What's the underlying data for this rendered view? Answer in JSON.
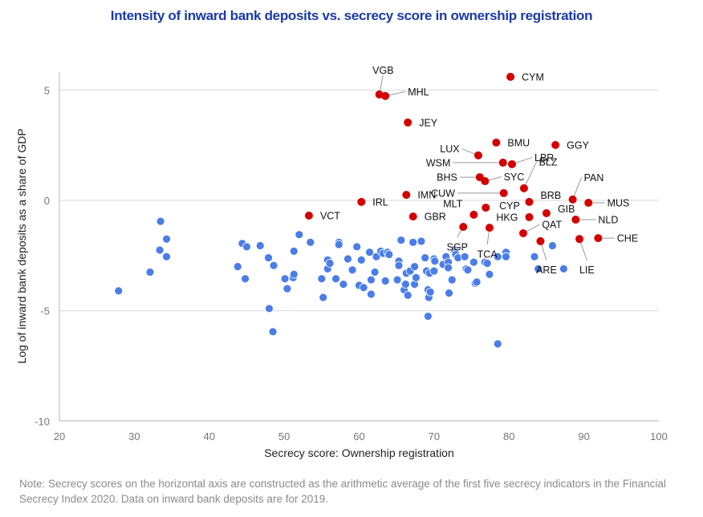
{
  "chart_data": {
    "type": "scatter",
    "title": "Intensity of inward bank deposits vs. secrecy score in ownership registration",
    "xlabel": "Secrecy score: Ownership registration",
    "ylabel": "Log of inward bank deposits as a share of GDP",
    "xlim": [
      20,
      100
    ],
    "ylim": [
      -10,
      6
    ],
    "xticks": [
      20,
      30,
      40,
      50,
      60,
      70,
      80,
      90,
      100
    ],
    "yticks": [
      5,
      0,
      -5,
      -10
    ],
    "grid": "horizontal",
    "colors": {
      "labeled": "#d40000",
      "other": "#4a7de8",
      "title": "#1a3aa8",
      "grid": "#d9d9d9",
      "leader": "#999999"
    },
    "series": [
      {
        "name": "labeled",
        "points": [
          {
            "label": "VGB",
            "x": 62.7,
            "y": 4.8,
            "lx": 0.5,
            "ly": 1.1
          },
          {
            "label": "MHL",
            "x": 63.5,
            "y": 4.73,
            "lx": 3.0,
            "ly": 0.2
          },
          {
            "label": "CYM",
            "x": 80.2,
            "y": 5.6,
            "lx": 1.5,
            "ly": 0
          },
          {
            "label": "JEY",
            "x": 66.5,
            "y": 3.53,
            "lx": 1.5,
            "ly": 0
          },
          {
            "label": "BMU",
            "x": 78.3,
            "y": 2.62,
            "lx": 1.5,
            "ly": 0
          },
          {
            "label": "GGY",
            "x": 86.2,
            "y": 2.51,
            "lx": 1.5,
            "ly": 0
          },
          {
            "label": "LUX",
            "x": 75.9,
            "y": 2.04,
            "lx": -2.5,
            "ly": 0.3
          },
          {
            "label": "WSM",
            "x": 79.2,
            "y": 1.71,
            "lx": -7.0,
            "ly": 0.0
          },
          {
            "label": "LBR",
            "x": 80.4,
            "y": 1.64,
            "lx": 3.0,
            "ly": 0.3
          },
          {
            "label": "BHS",
            "x": 76.1,
            "y": 1.05,
            "lx": -3.0,
            "ly": 0.0
          },
          {
            "label": "SYC",
            "x": 76.8,
            "y": 0.87,
            "lx": 2.5,
            "ly": 0.2
          },
          {
            "label": "BLZ",
            "x": 82.0,
            "y": 0.55,
            "lx": 2.0,
            "ly": 1.2
          },
          {
            "label": "CUW",
            "x": 79.3,
            "y": 0.33,
            "lx": -6.5,
            "ly": 0.0
          },
          {
            "label": "IMN",
            "x": 66.3,
            "y": 0.25,
            "lx": 1.5,
            "ly": 0
          },
          {
            "label": "IRL",
            "x": 60.3,
            "y": -0.07,
            "lx": 1.5,
            "ly": 0
          },
          {
            "label": "PAN",
            "x": 88.5,
            "y": 0.04,
            "lx": 1.5,
            "ly": 1.0
          },
          {
            "label": "MUS",
            "x": 90.6,
            "y": -0.11,
            "lx": 2.5,
            "ly": 0.0
          },
          {
            "label": "BRB",
            "x": 82.7,
            "y": -0.07,
            "lx": 1.5,
            "ly": 0.3
          },
          {
            "label": "CYP",
            "x": 76.9,
            "y": -0.33,
            "lx": 1.8,
            "ly": 0.1
          },
          {
            "label": "MLT",
            "x": 75.3,
            "y": -0.65,
            "lx": -1.5,
            "ly": 0.5
          },
          {
            "label": "GIB",
            "x": 85.0,
            "y": -0.58,
            "lx": 1.5,
            "ly": 0.2
          },
          {
            "label": "VCT",
            "x": 53.3,
            "y": -0.69,
            "lx": 1.5,
            "ly": 0
          },
          {
            "label": "GBR",
            "x": 67.2,
            "y": -0.73,
            "lx": 1.5,
            "ly": 0
          },
          {
            "label": "HKG",
            "x": 82.7,
            "y": -0.76,
            "lx": -1.5,
            "ly": 0
          },
          {
            "label": "NLD",
            "x": 88.9,
            "y": -0.87,
            "lx": 3.0,
            "ly": 0.0
          },
          {
            "label": "SGP",
            "x": 73.9,
            "y": -1.2,
            "lx": -0.8,
            "ly": -0.9
          },
          {
            "label": "TCA",
            "x": 77.4,
            "y": -1.24,
            "lx": -0.3,
            "ly": -1.2
          },
          {
            "label": "QAT",
            "x": 81.9,
            "y": -1.49,
            "lx": 2.5,
            "ly": 0.4
          },
          {
            "label": "ARE",
            "x": 84.2,
            "y": -1.85,
            "lx": 0.8,
            "ly": -1.3
          },
          {
            "label": "LIE",
            "x": 89.4,
            "y": -1.75,
            "lx": 1.0,
            "ly": -1.4
          },
          {
            "label": "CHE",
            "x": 91.9,
            "y": -1.71,
            "lx": 2.5,
            "ly": 0.0
          }
        ]
      },
      {
        "name": "other",
        "points": [
          [
            27.9,
            -4.1
          ],
          [
            32.1,
            -3.25
          ],
          [
            33.5,
            -0.95
          ],
          [
            33.4,
            -2.25
          ],
          [
            34.3,
            -1.75
          ],
          [
            34.3,
            -2.55
          ],
          [
            43.8,
            -3.0
          ],
          [
            44.4,
            -1.95
          ],
          [
            45.0,
            -2.1
          ],
          [
            44.8,
            -3.55
          ],
          [
            46.8,
            -2.05
          ],
          [
            47.9,
            -2.6
          ],
          [
            48.6,
            -2.95
          ],
          [
            48.0,
            -4.9
          ],
          [
            48.5,
            -5.95
          ],
          [
            50.1,
            -3.55
          ],
          [
            50.4,
            -4.0
          ],
          [
            51.2,
            -3.5
          ],
          [
            51.3,
            -3.35
          ],
          [
            51.3,
            -2.3
          ],
          [
            52.0,
            -1.55
          ],
          [
            53.5,
            -1.9
          ],
          [
            55.0,
            -3.55
          ],
          [
            55.2,
            -4.4
          ],
          [
            55.8,
            -2.7
          ],
          [
            55.8,
            -3.1
          ],
          [
            56.1,
            -2.85
          ],
          [
            56.9,
            -3.55
          ],
          [
            57.3,
            -1.9
          ],
          [
            57.3,
            -2.0
          ],
          [
            57.9,
            -3.8
          ],
          [
            58.5,
            -2.65
          ],
          [
            59.1,
            -3.15
          ],
          [
            59.7,
            -2.1
          ],
          [
            60.0,
            -3.85
          ],
          [
            60.3,
            -2.7
          ],
          [
            60.6,
            -3.95
          ],
          [
            61.4,
            -2.35
          ],
          [
            61.6,
            -4.25
          ],
          [
            61.6,
            -3.6
          ],
          [
            62.1,
            -3.25
          ],
          [
            62.3,
            -2.55
          ],
          [
            62.9,
            -2.3
          ],
          [
            63.2,
            -2.4
          ],
          [
            63.5,
            -3.65
          ],
          [
            63.8,
            -2.35
          ],
          [
            64.0,
            -2.45
          ],
          [
            65.1,
            -3.6
          ],
          [
            65.3,
            -2.75
          ],
          [
            65.3,
            -2.95
          ],
          [
            65.6,
            -1.8
          ],
          [
            66.0,
            -4.05
          ],
          [
            66.3,
            -3.3
          ],
          [
            66.2,
            -3.8
          ],
          [
            66.5,
            -4.3
          ],
          [
            66.8,
            -3.2
          ],
          [
            67.2,
            -1.9
          ],
          [
            67.4,
            -3.0
          ],
          [
            67.4,
            -3.8
          ],
          [
            67.6,
            -3.5
          ],
          [
            68.3,
            -1.85
          ],
          [
            68.8,
            -2.6
          ],
          [
            69.0,
            -3.2
          ],
          [
            69.2,
            -4.05
          ],
          [
            69.4,
            -3.3
          ],
          [
            69.3,
            -4.4
          ],
          [
            69.5,
            -4.15
          ],
          [
            69.2,
            -5.25
          ],
          [
            70.0,
            -2.65
          ],
          [
            70.1,
            -2.75
          ],
          [
            70.0,
            -3.2
          ],
          [
            71.2,
            -2.9
          ],
          [
            71.6,
            -2.55
          ],
          [
            71.9,
            -2.8
          ],
          [
            71.9,
            -3.05
          ],
          [
            72.0,
            -4.2
          ],
          [
            72.4,
            -3.6
          ],
          [
            72.8,
            -2.25
          ],
          [
            72.8,
            -2.35
          ],
          [
            72.9,
            -2.45
          ],
          [
            73.2,
            -2.6
          ],
          [
            74.1,
            -2.55
          ],
          [
            74.3,
            -3.1
          ],
          [
            74.5,
            -3.15
          ],
          [
            75.3,
            -2.8
          ],
          [
            75.5,
            -3.75
          ],
          [
            75.7,
            -3.7
          ],
          [
            76.8,
            -2.8
          ],
          [
            77.1,
            -2.85
          ],
          [
            77.4,
            -3.35
          ],
          [
            78.5,
            -2.55
          ],
          [
            78.5,
            -6.5
          ],
          [
            79.6,
            -2.35
          ],
          [
            79.6,
            -2.55
          ],
          [
            83.4,
            -2.55
          ],
          [
            83.9,
            -3.1
          ],
          [
            85.8,
            -2.05
          ],
          [
            87.3,
            -3.1
          ]
        ]
      }
    ]
  },
  "note": "Note: Secrecy scores on the horizontal axis are constructed as the arithmetic average of the first five secrecy indicators in the Financial Secrecy Index 2020. Data on inward bank deposits are for 2019."
}
